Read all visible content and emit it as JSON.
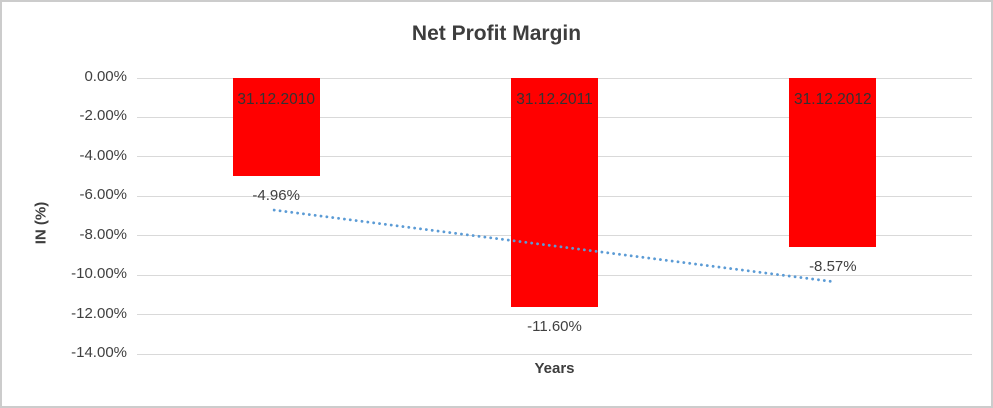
{
  "frame": {
    "background": "#ffffff",
    "border_color": "#cccccc"
  },
  "chart_data": {
    "type": "bar",
    "title": "Net Profit Margin",
    "xlabel": "Years",
    "ylabel": "IN (%)",
    "categories": [
      "31.12.2010",
      "31.12.2011",
      "31.12.2012"
    ],
    "values": [
      -4.96,
      -11.6,
      -8.57
    ],
    "value_labels": [
      "-4.96%",
      "-11.60%",
      "-8.57%"
    ],
    "ylim": [
      -14,
      0
    ],
    "ytick_values": [
      0,
      -2,
      -4,
      -6,
      -8,
      -10,
      -12,
      -14
    ],
    "ytick_labels": [
      "0.00%",
      "-2.00%",
      "-4.00%",
      "-6.00%",
      "-8.00%",
      "-10.00%",
      "-12.00%",
      "-14.00%"
    ],
    "grid": true,
    "legend": "none",
    "bar_color": "#ff0000",
    "category_label_color": "#333333",
    "text_color": "#404040",
    "gridline_color": "#d9d9d9",
    "trendline": {
      "type": "linear",
      "style": "dotted",
      "color": "#5b9bd5",
      "start_value": -6.7,
      "end_value": -10.35
    }
  }
}
